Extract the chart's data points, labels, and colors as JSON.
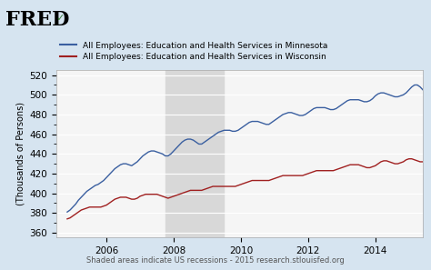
{
  "title_fred": "FRED",
  "legend_mn": "All Employees: Education and Health Services in Minnesota",
  "legend_wi": "All Employees: Education and Health Services in Wisconsin",
  "ylabel": "(Thousands of Persons)",
  "footer": "Shaded areas indicate US recessions - 2015 research.stlouisfed.org",
  "color_mn": "#3a5fa0",
  "color_wi": "#a02020",
  "background_outer": "#d6e4f0",
  "background_plot": "#f5f5f5",
  "recession_color": "#d8d8d8",
  "recession_start": 2007.75,
  "recession_end": 2009.5,
  "ylim": [
    355,
    525
  ],
  "yticks": [
    360,
    380,
    400,
    420,
    440,
    460,
    480,
    500,
    520
  ],
  "xlim_start": 2004.5,
  "xlim_end": 2015.4,
  "xticks": [
    2006,
    2008,
    2010,
    2012,
    2014
  ],
  "mn_data": [
    381,
    383,
    386,
    389,
    393,
    396,
    399,
    402,
    404,
    406,
    408,
    409,
    411,
    413,
    416,
    419,
    422,
    425,
    427,
    429,
    430,
    430,
    429,
    428,
    430,
    432,
    435,
    438,
    440,
    442,
    443,
    443,
    442,
    441,
    440,
    438,
    438,
    440,
    443,
    446,
    449,
    452,
    454,
    455,
    455,
    454,
    452,
    450,
    450,
    452,
    454,
    456,
    458,
    460,
    462,
    463,
    464,
    464,
    464,
    463,
    463,
    464,
    466,
    468,
    470,
    472,
    473,
    473,
    473,
    472,
    471,
    470,
    470,
    472,
    474,
    476,
    478,
    480,
    481,
    482,
    482,
    481,
    480,
    479,
    479,
    480,
    482,
    484,
    486,
    487,
    487,
    487,
    487,
    486,
    485,
    485,
    486,
    488,
    490,
    492,
    494,
    495,
    495,
    495,
    495,
    494,
    493,
    493,
    494,
    496,
    499,
    501,
    502,
    502,
    501,
    500,
    499,
    498,
    498,
    499,
    500,
    502,
    505,
    508,
    510,
    510,
    508,
    505
  ],
  "wi_data": [
    374,
    375,
    377,
    379,
    381,
    383,
    384,
    385,
    386,
    386,
    386,
    386,
    386,
    387,
    388,
    390,
    392,
    394,
    395,
    396,
    396,
    396,
    395,
    394,
    394,
    395,
    397,
    398,
    399,
    399,
    399,
    399,
    399,
    398,
    397,
    396,
    395,
    396,
    397,
    398,
    399,
    400,
    401,
    402,
    403,
    403,
    403,
    403,
    403,
    404,
    405,
    406,
    407,
    407,
    407,
    407,
    407,
    407,
    407,
    407,
    407,
    408,
    409,
    410,
    411,
    412,
    413,
    413,
    413,
    413,
    413,
    413,
    413,
    414,
    415,
    416,
    417,
    418,
    418,
    418,
    418,
    418,
    418,
    418,
    418,
    419,
    420,
    421,
    422,
    423,
    423,
    423,
    423,
    423,
    423,
    423,
    424,
    425,
    426,
    427,
    428,
    429,
    429,
    429,
    429,
    428,
    427,
    426,
    426,
    427,
    428,
    430,
    432,
    433,
    433,
    432,
    431,
    430,
    430,
    431,
    432,
    434,
    435,
    435,
    434,
    433,
    432,
    432
  ]
}
